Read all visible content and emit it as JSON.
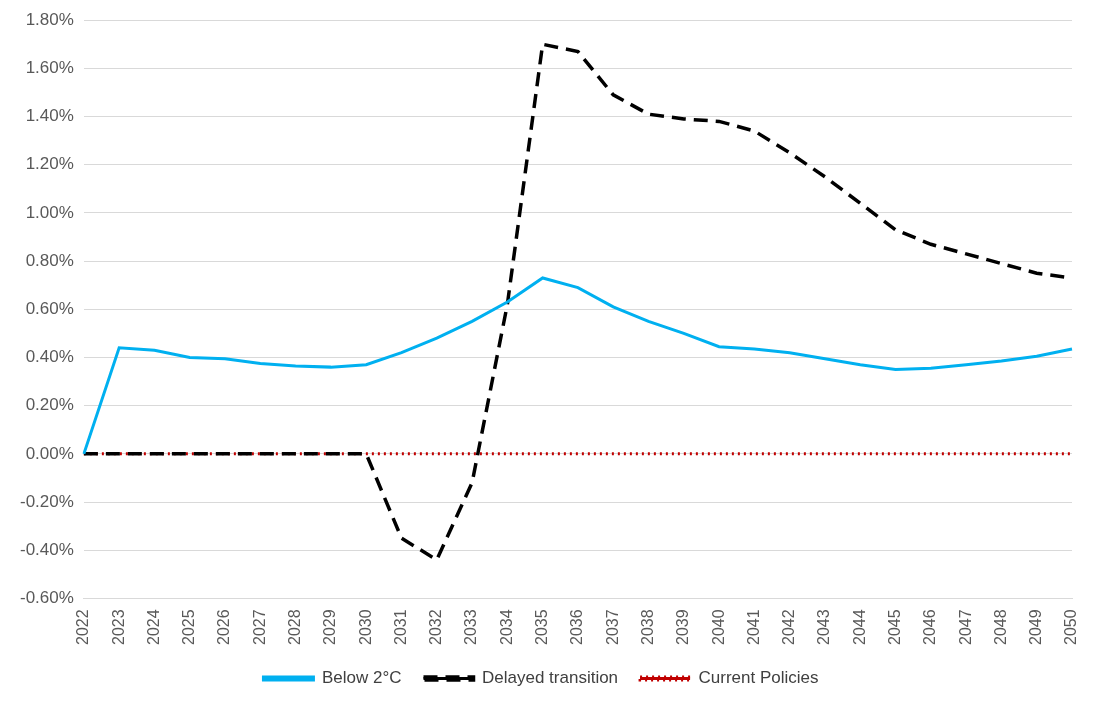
{
  "chart_data": {
    "type": "line",
    "categories": [
      "2022",
      "2023",
      "2024",
      "2025",
      "2026",
      "2027",
      "2028",
      "2029",
      "2030",
      "2031",
      "2032",
      "2033",
      "2034",
      "2035",
      "2036",
      "2037",
      "2038",
      "2039",
      "2040",
      "2041",
      "2042",
      "2043",
      "2044",
      "2045",
      "2046",
      "2047",
      "2048",
      "2049",
      "2050"
    ],
    "series": [
      {
        "name": "Below 2°C",
        "color": "#00b0f0",
        "line_style": "solid",
        "values": [
          0,
          0.44,
          0.43,
          0.4,
          0.395,
          0.375,
          0.365,
          0.36,
          0.37,
          0.42,
          0.48,
          0.55,
          0.63,
          0.73,
          0.69,
          0.61,
          0.55,
          0.5,
          0.445,
          0.435,
          0.42,
          0.395,
          0.37,
          0.35,
          0.355,
          0.37,
          0.385,
          0.405,
          0.435
        ]
      },
      {
        "name": "Delayed transition",
        "color": "#000000",
        "line_style": "dashed",
        "values": [
          0,
          0,
          0,
          0,
          0,
          0,
          0,
          0,
          0,
          -0.35,
          -0.44,
          -0.12,
          0.62,
          1.7,
          1.67,
          1.49,
          1.41,
          1.39,
          1.38,
          1.34,
          1.25,
          1.15,
          1.04,
          0.93,
          0.87,
          0.83,
          0.79,
          0.75,
          0.73
        ]
      },
      {
        "name": "Current Policies",
        "color": "#c00000",
        "line_style": "dotted",
        "values": [
          0,
          0,
          0,
          0,
          0,
          0,
          0,
          0,
          0,
          0,
          0,
          0,
          0,
          0,
          0,
          0,
          0,
          0,
          0,
          0,
          0,
          0,
          0,
          0,
          0,
          0,
          0,
          0,
          0
        ]
      }
    ],
    "ylim": [
      -0.6,
      1.8
    ],
    "yticks": [
      {
        "value": -0.6,
        "label": "-0.60%"
      },
      {
        "value": -0.4,
        "label": "-0.40%"
      },
      {
        "value": -0.2,
        "label": "-0.20%"
      },
      {
        "value": 0,
        "label": "0.00%"
      },
      {
        "value": 0.2,
        "label": "0.20%"
      },
      {
        "value": 0.4,
        "label": "0.40%"
      },
      {
        "value": 0.6,
        "label": "0.60%"
      },
      {
        "value": 0.8,
        "label": "0.80%"
      },
      {
        "value": 1.0,
        "label": "1.00%"
      },
      {
        "value": 1.2,
        "label": "1.20%"
      },
      {
        "value": 1.4,
        "label": "1.40%"
      },
      {
        "value": 1.6,
        "label": "1.60%"
      },
      {
        "value": 1.8,
        "label": "1.80%"
      }
    ],
    "grid": true,
    "legend": "bottom"
  }
}
